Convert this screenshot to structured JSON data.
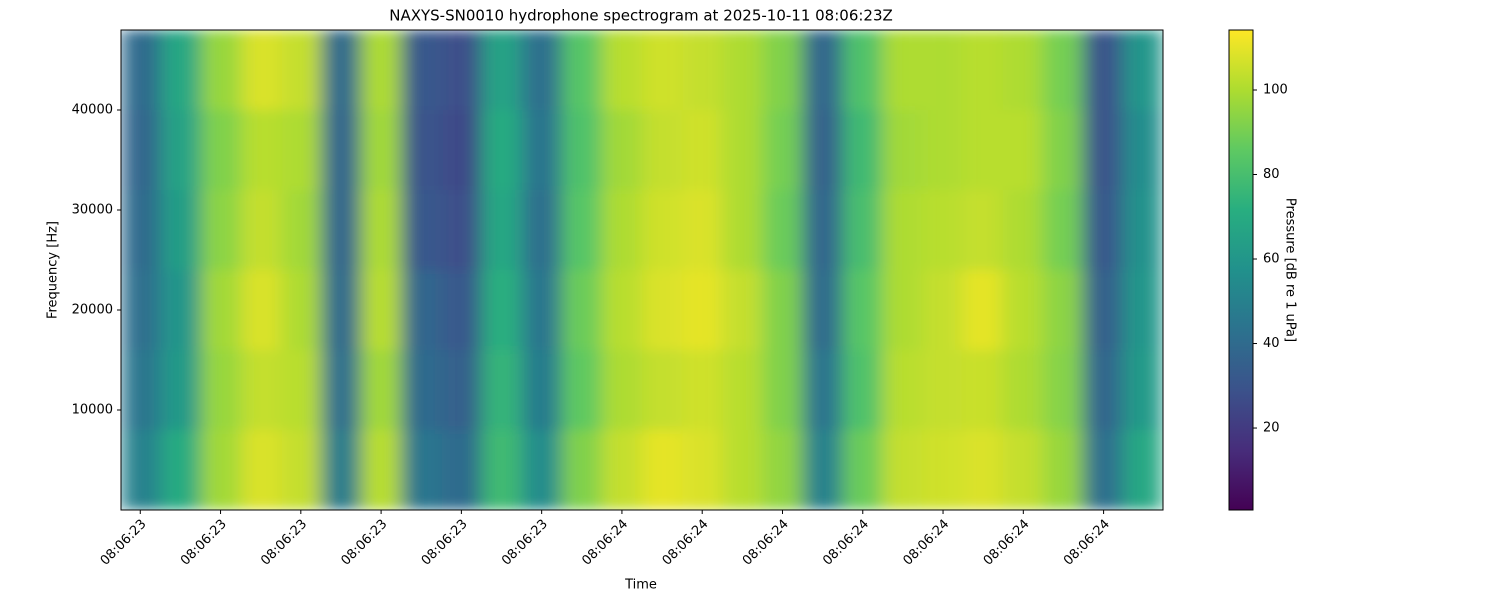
{
  "chart_data": {
    "type": "heatmap",
    "title": "NAXYS-SN0010 hydrophone spectrogram at 2025-10-11 08:06:23Z",
    "xlabel": "Time",
    "ylabel": "Frequency [Hz]",
    "colorbar_label": "Pressure [dB re 1 uPa]",
    "colormap": "viridis",
    "x": [
      23.451,
      23.501,
      23.551,
      23.601,
      23.651,
      23.7,
      23.75,
      23.8,
      23.85,
      23.9,
      23.95,
      24.0,
      24.05,
      24.1,
      24.15,
      24.2,
      24.25,
      24.3,
      24.35,
      24.399,
      24.449,
      24.499,
      24.549,
      24.599,
      24.649,
      24.699
    ],
    "y": [
      4000,
      12000,
      20000,
      28000,
      36000,
      44000
    ],
    "values": [
      [
        50,
        70,
        98,
        108,
        104,
        48,
        102,
        45,
        40,
        78,
        55,
        92,
        104,
        110,
        108,
        102,
        95,
        50,
        88,
        104,
        106,
        108,
        104,
        96,
        42,
        68
      ],
      [
        45,
        62,
        96,
        104,
        102,
        42,
        98,
        40,
        35,
        75,
        48,
        86,
        100,
        104,
        106,
        102,
        92,
        44,
        82,
        102,
        104,
        105,
        100,
        93,
        38,
        62
      ],
      [
        42,
        60,
        98,
        108,
        100,
        40,
        102,
        38,
        32,
        72,
        45,
        88,
        102,
        108,
        110,
        104,
        92,
        40,
        84,
        100,
        104,
        110,
        102,
        94,
        35,
        60
      ],
      [
        40,
        64,
        94,
        104,
        98,
        38,
        100,
        32,
        28,
        68,
        42,
        84,
        100,
        106,
        108,
        100,
        88,
        38,
        80,
        100,
        102,
        104,
        100,
        90,
        32,
        58
      ],
      [
        38,
        66,
        92,
        102,
        100,
        38,
        98,
        30,
        26,
        70,
        44,
        82,
        98,
        104,
        106,
        100,
        90,
        36,
        78,
        98,
        100,
        102,
        102,
        92,
        30,
        56
      ],
      [
        40,
        68,
        96,
        108,
        104,
        40,
        100,
        32,
        28,
        66,
        42,
        84,
        102,
        106,
        104,
        100,
        92,
        38,
        82,
        100,
        100,
        102,
        100,
        90,
        30,
        60
      ]
    ],
    "xlim": [
      23.426,
      24.724
    ],
    "xticks": [
      {
        "value": 23.45,
        "label": "08:06:23"
      },
      {
        "value": 23.55,
        "label": "08:06:23"
      },
      {
        "value": 23.65,
        "label": "08:06:23"
      },
      {
        "value": 23.75,
        "label": "08:06:23"
      },
      {
        "value": 23.85,
        "label": "08:06:23"
      },
      {
        "value": 23.95,
        "label": "08:06:23"
      },
      {
        "value": 24.05,
        "label": "08:06:24"
      },
      {
        "value": 24.15,
        "label": "08:06:24"
      },
      {
        "value": 24.25,
        "label": "08:06:24"
      },
      {
        "value": 24.35,
        "label": "08:06:24"
      },
      {
        "value": 24.45,
        "label": "08:06:24"
      },
      {
        "value": 24.55,
        "label": "08:06:24"
      },
      {
        "value": 24.65,
        "label": "08:06:24"
      }
    ],
    "ylim": [
      0,
      48000
    ],
    "yticks": [
      10000,
      20000,
      30000,
      40000
    ],
    "clim": [
      0.6,
      114.2
    ],
    "cticks": [
      20,
      40,
      60,
      80,
      100
    ]
  }
}
